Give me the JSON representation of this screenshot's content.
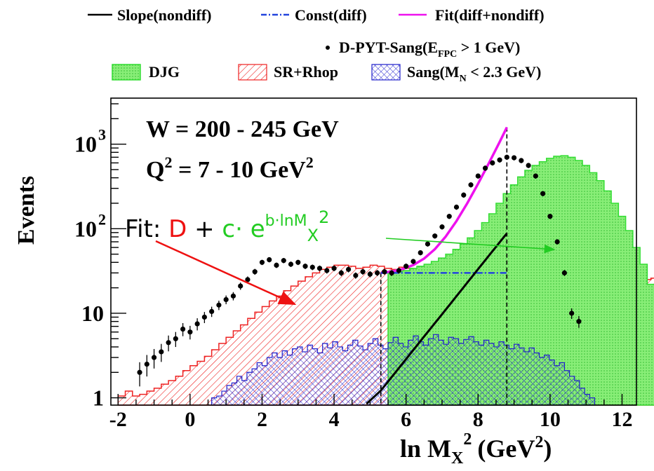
{
  "chart_data": {
    "type": "histogram",
    "xlabel": "ln M",
    "xlabel_sub": "X",
    "xlabel_tail": "(GeV",
    "xlabel_sup": "2",
    "xlabel_sup2": "2",
    "xlabel_close": ")",
    "ylabel": "Events",
    "xlim": [
      -2.2,
      12.4
    ],
    "ylim": [
      0.82,
      3500
    ],
    "yscale": "log",
    "xticks": [
      -2,
      0,
      2,
      4,
      6,
      8,
      10,
      12
    ],
    "xtick_labels": [
      "-2",
      "0",
      "2",
      "4",
      "6",
      "8",
      "10",
      "12"
    ],
    "ytick_labels": [
      {
        "value": 1,
        "base": "1",
        "exp": ""
      },
      {
        "value": 10,
        "base": "10",
        "exp": ""
      },
      {
        "value": 100,
        "base": "10",
        "exp": "2"
      },
      {
        "value": 1000,
        "base": "10",
        "exp": "3"
      }
    ],
    "annotations": {
      "w_range": "W = 200 - 245 GeV",
      "q2_prefix": "Q",
      "q2_sup": "2",
      "q2_mid": " = 7 - 10 GeV",
      "q2_sup2": "2",
      "fit_prefix": "Fit: ",
      "fit_D": "D",
      "fit_plus": " + ",
      "fit_c": "c· e",
      "fit_exp_a": "b·lnM",
      "fit_exp_sub": "X",
      "fit_exp_sup": "2"
    },
    "legend": {
      "slope": "Slope(nondiff)",
      "const": "Const(diff)",
      "fit": "Fit(diff+nondiff)",
      "data_label_a": "D-PYT-Sang(E",
      "data_label_sub": "FPC",
      "data_label_b": " > 1 GeV)",
      "djg": "DJG",
      "srrhop": "SR+Rhop",
      "sang_a": "Sang(M",
      "sang_sub": "N",
      "sang_b": " < 2.3 GeV)"
    },
    "fit_range": [
      5.3,
      8.8
    ],
    "colors": {
      "djg": "#33dd33",
      "djg_fill": "#88ee77",
      "srrhop": "#ee2222",
      "sang": "#2222cc",
      "fit": "#ee11ee",
      "const": "#2244dd",
      "slope": "#000000",
      "annotation_red": "#ee1111",
      "annotation_green": "#22cc22"
    },
    "series": [
      {
        "name": "SR+Rhop",
        "kind": "hist",
        "x_start": -2.0,
        "bin_width": 0.2,
        "values": [
          1.05,
          1.2,
          1.05,
          1.1,
          1.2,
          1.3,
          1.45,
          1.6,
          1.8,
          2.1,
          2.4,
          2.7,
          3.1,
          3.7,
          4.4,
          5.2,
          6.2,
          7.3,
          8.7,
          10.3,
          12,
          14,
          16,
          18.5,
          21,
          24,
          27,
          30,
          33,
          35,
          37,
          37,
          36,
          34,
          35,
          37,
          36,
          34,
          33,
          35,
          34,
          32,
          31,
          33,
          35,
          32,
          30,
          29,
          31,
          33,
          31,
          30,
          29,
          29,
          30,
          31,
          29,
          28,
          30,
          28,
          27,
          28,
          27,
          27,
          28,
          27,
          26,
          26,
          27,
          26,
          27,
          26,
          26,
          25,
          26,
          25,
          26,
          25,
          21,
          17,
          13,
          10,
          6.5,
          4.5,
          2.6,
          1.5,
          1.0
        ]
      },
      {
        "name": "DJG",
        "kind": "hist",
        "x_start": 5.5,
        "bin_width": 0.2,
        "values": [
          30,
          31,
          32,
          34,
          36,
          38,
          41,
          45,
          50,
          57,
          66,
          78,
          95,
          118,
          150,
          200,
          260,
          330,
          410,
          490,
          560,
          620,
          680,
          720,
          730,
          700,
          640,
          560,
          460,
          370,
          280,
          200,
          140,
          95,
          60,
          38,
          22,
          13,
          7,
          3.5,
          2.0,
          1.2
        ]
      },
      {
        "name": "Sang(MN < 2.3 GeV)",
        "kind": "hist",
        "x_start": 0.6,
        "bin_width": 0.14,
        "values": [
          1.0,
          1.05,
          1.2,
          1.4,
          1.5,
          1.8,
          1.6,
          2.0,
          2.2,
          2.6,
          2.4,
          3.0,
          3.4,
          3.0,
          3.6,
          3.2,
          3.8,
          4.0,
          3.5,
          4.2,
          3.8,
          3.4,
          4.4,
          3.9,
          4.6,
          4.0,
          3.6,
          4.2,
          4.8,
          4.1,
          3.7,
          4.4,
          5.0,
          4.2,
          3.8,
          4.5,
          5.2,
          4.4,
          4.0,
          4.8,
          5.4,
          4.6,
          4.2,
          5.0,
          5.6,
          4.8,
          4.3,
          5.2,
          5.0,
          4.4,
          4.9,
          5.3,
          4.6,
          4.2,
          4.8,
          4.4,
          4.0,
          4.6,
          4.2,
          3.8,
          4.3,
          3.9,
          3.5,
          3.9,
          3.4,
          3.0,
          3.2,
          2.8,
          2.4,
          2.6,
          2.1,
          1.8,
          1.6,
          1.3,
          1.1,
          1.0
        ]
      },
      {
        "name": "D-PYT-Sang(EFPC > 1 GeV)",
        "kind": "points",
        "x": [
          -1.4,
          -1.2,
          -1.0,
          -0.8,
          -0.6,
          -0.4,
          -0.2,
          0.0,
          0.2,
          0.4,
          0.6,
          0.8,
          1.0,
          1.2,
          1.4,
          1.6,
          1.8,
          2.0,
          2.2,
          2.4,
          2.6,
          2.8,
          3.0,
          3.2,
          3.4,
          3.6,
          3.8,
          4.0,
          4.2,
          4.4,
          4.6,
          4.8,
          5.0,
          5.2,
          5.4,
          5.6,
          5.8,
          6.0,
          6.2,
          6.4,
          6.6,
          6.8,
          7.0,
          7.2,
          7.4,
          7.6,
          7.8,
          8.0,
          8.2,
          8.4,
          8.6,
          8.8,
          9.0,
          9.2,
          9.4,
          9.6,
          9.8,
          10.0,
          10.2,
          10.4,
          10.6,
          10.8
        ],
        "y": [
          2.0,
          2.5,
          3.0,
          3.5,
          4.5,
          5.0,
          6.5,
          6.0,
          7.5,
          9.0,
          10.5,
          12.5,
          14.5,
          16,
          21,
          25,
          31,
          40,
          43,
          37,
          42,
          38,
          40,
          36,
          35,
          34,
          32,
          34,
          30,
          33,
          28,
          31,
          29,
          30,
          31,
          30,
          32,
          36,
          41,
          52,
          66,
          82,
          105,
          140,
          180,
          250,
          330,
          420,
          520,
          600,
          650,
          700,
          690,
          640,
          560,
          420,
          260,
          140,
          70,
          30,
          10,
          8
        ]
      },
      {
        "name": "Fit(diff+nondiff)",
        "kind": "curve",
        "x": [
          5.3,
          5.6,
          5.9,
          6.2,
          6.5,
          6.8,
          7.1,
          7.4,
          7.7,
          8.0,
          8.3,
          8.6,
          8.8
        ],
        "y": [
          30,
          31.2,
          33.3,
          37.2,
          44.3,
          57.2,
          80.6,
          123,
          200,
          340,
          596,
          1060,
          1580
        ]
      },
      {
        "name": "Const(diff)",
        "kind": "curve",
        "x": [
          5.3,
          8.8
        ],
        "y": [
          30,
          30
        ]
      },
      {
        "name": "Slope(nondiff)",
        "kind": "curve",
        "x": [
          4.9,
          5.3,
          5.9,
          6.5,
          7.1,
          7.7,
          8.3,
          8.8
        ],
        "y": [
          0.85,
          1.22,
          2.54,
          5.3,
          11,
          23,
          48,
          88
        ]
      }
    ]
  }
}
